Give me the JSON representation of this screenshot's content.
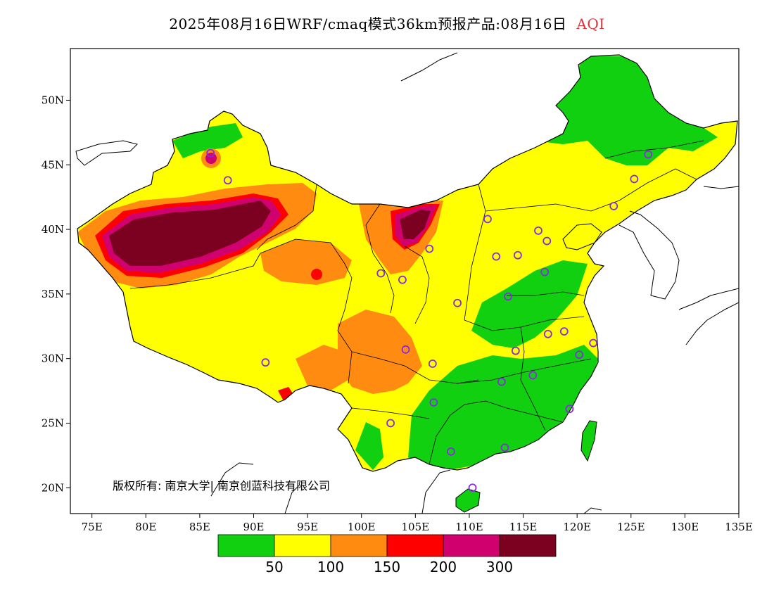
{
  "title": {
    "main": "2025年08月16日WRF/cmaq模式36km预报产品:08月16日",
    "product": "AQI"
  },
  "copyright": "版权所有: 南京大学| 南京创蓝科技有限公司",
  "axes": {
    "x_ticks": [
      "75E",
      "80E",
      "85E",
      "90E",
      "95E",
      "100E",
      "105E",
      "110E",
      "115E",
      "120E",
      "125E",
      "130E",
      "135E"
    ],
    "x_values": [
      75,
      80,
      85,
      90,
      95,
      100,
      105,
      110,
      115,
      120,
      125,
      130,
      135
    ],
    "y_ticks": [
      "20N",
      "25N",
      "30N",
      "35N",
      "40N",
      "45N",
      "50N"
    ],
    "y_values": [
      20,
      25,
      30,
      35,
      40,
      45,
      50
    ],
    "lon_range": [
      73,
      135
    ],
    "lat_range": [
      18,
      54
    ]
  },
  "legend": {
    "colors": [
      "#10d010",
      "#ffff00",
      "#ff8c10",
      "#ff0000",
      "#d0006e",
      "#7c0020"
    ],
    "labels": [
      "50",
      "100",
      "150",
      "200",
      "300"
    ]
  },
  "colors": {
    "good": "#10d010",
    "moderate": "#ffff00",
    "unhealthy_sensitive": "#ff8c10",
    "unhealthy": "#ff0000",
    "very_unhealthy": "#d0006e",
    "hazardous": "#7c0020",
    "city_marker": "#8a2be2"
  },
  "cities": [
    {
      "lon": 126.6,
      "lat": 45.8
    },
    {
      "lon": 125.3,
      "lat": 43.9
    },
    {
      "lon": 123.4,
      "lat": 41.8
    },
    {
      "lon": 116.4,
      "lat": 39.9
    },
    {
      "lon": 117.2,
      "lat": 39.1
    },
    {
      "lon": 114.5,
      "lat": 38.0
    },
    {
      "lon": 112.5,
      "lat": 37.9
    },
    {
      "lon": 111.7,
      "lat": 40.8
    },
    {
      "lon": 106.3,
      "lat": 38.5
    },
    {
      "lon": 103.8,
      "lat": 36.1
    },
    {
      "lon": 101.8,
      "lat": 36.6
    },
    {
      "lon": 108.9,
      "lat": 34.3
    },
    {
      "lon": 113.6,
      "lat": 34.8
    },
    {
      "lon": 117.0,
      "lat": 36.7
    },
    {
      "lon": 118.8,
      "lat": 32.1
    },
    {
      "lon": 117.3,
      "lat": 31.9
    },
    {
      "lon": 121.5,
      "lat": 31.2
    },
    {
      "lon": 120.2,
      "lat": 30.3
    },
    {
      "lon": 114.3,
      "lat": 30.6
    },
    {
      "lon": 115.9,
      "lat": 28.7
    },
    {
      "lon": 113.0,
      "lat": 28.2
    },
    {
      "lon": 106.6,
      "lat": 29.6
    },
    {
      "lon": 104.1,
      "lat": 30.7
    },
    {
      "lon": 106.7,
      "lat": 26.6
    },
    {
      "lon": 102.7,
      "lat": 25.0
    },
    {
      "lon": 108.3,
      "lat": 22.8
    },
    {
      "lon": 113.3,
      "lat": 23.1
    },
    {
      "lon": 119.3,
      "lat": 26.1
    },
    {
      "lon": 110.3,
      "lat": 20.0
    },
    {
      "lon": 91.1,
      "lat": 29.7
    },
    {
      "lon": 87.6,
      "lat": 43.8
    },
    {
      "lon": 86.0,
      "lat": 45.9
    }
  ]
}
